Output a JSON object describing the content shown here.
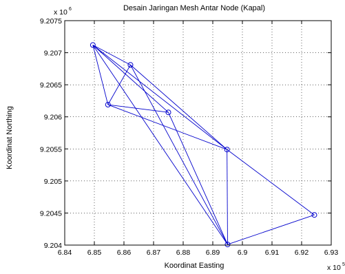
{
  "chart_data": {
    "type": "line",
    "title": "Desain Jaringan Mesh Antar Node (Kapal)",
    "xlabel": "Koordinat Easting",
    "ylabel": "Koordinat Northing",
    "x_exponent_label": "x 10",
    "x_exponent_power": "5",
    "y_exponent_label": "x 10",
    "y_exponent_power": "6",
    "xlim": [
      6.84,
      6.93
    ],
    "ylim": [
      9.204,
      9.2075
    ],
    "x_ticks": [
      "6.84",
      "6.85",
      "6.86",
      "6.87",
      "6.88",
      "6.89",
      "6.9",
      "6.91",
      "6.92",
      "6.93"
    ],
    "y_ticks": [
      "9.204",
      "9.2045",
      "9.205",
      "9.2055",
      "9.206",
      "9.2065",
      "9.207",
      "9.2075"
    ],
    "grid": true,
    "line_color": "#0000cc",
    "nodes": [
      {
        "x": 6.8495,
        "y": 9.20712
      },
      {
        "x": 6.8622,
        "y": 9.20681
      },
      {
        "x": 6.8546,
        "y": 9.20619
      },
      {
        "x": 6.875,
        "y": 9.20607
      },
      {
        "x": 6.8948,
        "y": 9.20549
      },
      {
        "x": 6.895,
        "y": 9.20401
      },
      {
        "x": 6.9243,
        "y": 9.20447
      }
    ],
    "edges": [
      [
        0,
        1
      ],
      [
        0,
        2
      ],
      [
        0,
        4
      ],
      [
        0,
        5
      ],
      [
        1,
        2
      ],
      [
        1,
        4
      ],
      [
        1,
        5
      ],
      [
        2,
        3
      ],
      [
        2,
        4
      ],
      [
        3,
        0
      ],
      [
        3,
        5
      ],
      [
        4,
        5
      ],
      [
        4,
        6
      ],
      [
        5,
        6
      ]
    ]
  }
}
